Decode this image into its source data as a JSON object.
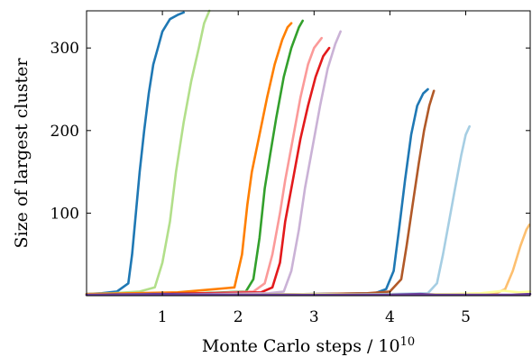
{
  "chart_data": {
    "type": "line",
    "xlabel": "Monte Carlo steps / 10",
    "xlabel_exponent": "10",
    "ylabel": "Size of largest cluster",
    "xlim": [
      0,
      5.85
    ],
    "ylim": [
      0,
      345
    ],
    "xticks": [
      1,
      2,
      3,
      4,
      5
    ],
    "yticks": [
      100,
      200,
      300
    ],
    "grid": false,
    "legend": "none",
    "series": [
      {
        "color": "#1f78b4",
        "points": [
          [
            0.0,
            2
          ],
          [
            0.2,
            3
          ],
          [
            0.4,
            5
          ],
          [
            0.55,
            15
          ],
          [
            0.6,
            50
          ],
          [
            0.65,
            100
          ],
          [
            0.7,
            150
          ],
          [
            0.76,
            200
          ],
          [
            0.82,
            245
          ],
          [
            0.88,
            280
          ],
          [
            0.94,
            300
          ],
          [
            1.0,
            320
          ],
          [
            1.1,
            335
          ],
          [
            1.2,
            340
          ],
          [
            1.28,
            343
          ]
        ]
      },
      {
        "color": "#b2df8a",
        "points": [
          [
            0.0,
            2
          ],
          [
            0.35,
            3
          ],
          [
            0.7,
            5
          ],
          [
            0.9,
            10
          ],
          [
            1.0,
            40
          ],
          [
            1.1,
            90
          ],
          [
            1.18,
            150
          ],
          [
            1.28,
            210
          ],
          [
            1.38,
            260
          ],
          [
            1.48,
            300
          ],
          [
            1.55,
            330
          ],
          [
            1.62,
            345
          ]
        ]
      },
      {
        "color": "#ff7f00",
        "points": [
          [
            0.0,
            2
          ],
          [
            0.6,
            3
          ],
          [
            1.2,
            4
          ],
          [
            1.7,
            8
          ],
          [
            1.95,
            10
          ],
          [
            2.05,
            50
          ],
          [
            2.12,
            110
          ],
          [
            2.18,
            150
          ],
          [
            2.28,
            195
          ],
          [
            2.38,
            240
          ],
          [
            2.48,
            280
          ],
          [
            2.58,
            310
          ],
          [
            2.65,
            325
          ],
          [
            2.7,
            330
          ]
        ]
      },
      {
        "color": "#33a02c",
        "points": [
          [
            0.0,
            1
          ],
          [
            0.8,
            2
          ],
          [
            1.5,
            3
          ],
          [
            2.1,
            5
          ],
          [
            2.2,
            20
          ],
          [
            2.28,
            70
          ],
          [
            2.35,
            130
          ],
          [
            2.42,
            170
          ],
          [
            2.5,
            215
          ],
          [
            2.6,
            265
          ],
          [
            2.7,
            300
          ],
          [
            2.8,
            325
          ],
          [
            2.85,
            333
          ]
        ]
      },
      {
        "color": "#fb9a99",
        "points": [
          [
            0.0,
            1
          ],
          [
            0.8,
            2
          ],
          [
            1.6,
            3
          ],
          [
            2.2,
            5
          ],
          [
            2.35,
            15
          ],
          [
            2.45,
            50
          ],
          [
            2.55,
            100
          ],
          [
            2.62,
            140
          ],
          [
            2.72,
            190
          ],
          [
            2.82,
            240
          ],
          [
            2.92,
            280
          ],
          [
            3.0,
            300
          ],
          [
            3.1,
            312
          ]
        ]
      },
      {
        "color": "#e31a1c",
        "points": [
          [
            0.0,
            1
          ],
          [
            0.8,
            2
          ],
          [
            1.6,
            3
          ],
          [
            2.3,
            4
          ],
          [
            2.45,
            10
          ],
          [
            2.55,
            40
          ],
          [
            2.62,
            90
          ],
          [
            2.72,
            140
          ],
          [
            2.82,
            190
          ],
          [
            2.92,
            230
          ],
          [
            3.02,
            265
          ],
          [
            3.12,
            290
          ],
          [
            3.2,
            300
          ]
        ]
      },
      {
        "color": "#cab2d6",
        "points": [
          [
            0.0,
            1
          ],
          [
            0.8,
            1
          ],
          [
            1.6,
            2
          ],
          [
            2.4,
            3
          ],
          [
            2.6,
            5
          ],
          [
            2.7,
            30
          ],
          [
            2.8,
            80
          ],
          [
            2.88,
            130
          ],
          [
            2.98,
            180
          ],
          [
            3.08,
            230
          ],
          [
            3.18,
            275
          ],
          [
            3.28,
            305
          ],
          [
            3.35,
            320
          ]
        ]
      },
      {
        "color": "#1f78b4",
        "points": [
          [
            0.0,
            1
          ],
          [
            1.0,
            1
          ],
          [
            2.0,
            1
          ],
          [
            3.0,
            2
          ],
          [
            3.8,
            3
          ],
          [
            3.95,
            8
          ],
          [
            4.05,
            30
          ],
          [
            4.12,
            80
          ],
          [
            4.2,
            140
          ],
          [
            4.28,
            195
          ],
          [
            4.36,
            230
          ],
          [
            4.44,
            245
          ],
          [
            4.5,
            250
          ]
        ]
      },
      {
        "color": "#b15928",
        "points": [
          [
            0.0,
            1
          ],
          [
            1.0,
            1
          ],
          [
            2.0,
            1
          ],
          [
            3.0,
            2
          ],
          [
            3.7,
            3
          ],
          [
            4.0,
            5
          ],
          [
            4.15,
            20
          ],
          [
            4.22,
            60
          ],
          [
            4.3,
            110
          ],
          [
            4.38,
            160
          ],
          [
            4.45,
            200
          ],
          [
            4.52,
            230
          ],
          [
            4.58,
            248
          ]
        ]
      },
      {
        "color": "#a6cee3",
        "points": [
          [
            0.0,
            1
          ],
          [
            1.0,
            1
          ],
          [
            2.0,
            1
          ],
          [
            3.0,
            1
          ],
          [
            4.0,
            2
          ],
          [
            4.5,
            3
          ],
          [
            4.62,
            15
          ],
          [
            4.7,
            50
          ],
          [
            4.78,
            90
          ],
          [
            4.86,
            130
          ],
          [
            4.94,
            170
          ],
          [
            5.0,
            195
          ],
          [
            5.05,
            205
          ]
        ]
      },
      {
        "color": "#fdbf6f",
        "points": [
          [
            0.0,
            1
          ],
          [
            2.0,
            1
          ],
          [
            3.0,
            1
          ],
          [
            4.0,
            1
          ],
          [
            5.0,
            2
          ],
          [
            5.4,
            3
          ],
          [
            5.52,
            8
          ],
          [
            5.62,
            30
          ],
          [
            5.72,
            60
          ],
          [
            5.8,
            80
          ],
          [
            5.84,
            86
          ]
        ]
      },
      {
        "color": "#ffff99",
        "points": [
          [
            0.0,
            1
          ],
          [
            1.0,
            2
          ],
          [
            2.0,
            1
          ],
          [
            3.0,
            2
          ],
          [
            4.0,
            1
          ],
          [
            4.8,
            2
          ],
          [
            5.2,
            3
          ],
          [
            5.5,
            6
          ],
          [
            5.7,
            4
          ],
          [
            5.85,
            5
          ]
        ]
      },
      {
        "color": "#6a3d9a",
        "points": [
          [
            0.0,
            1
          ],
          [
            1.0,
            2
          ],
          [
            2.0,
            1
          ],
          [
            3.0,
            1
          ],
          [
            4.0,
            1
          ],
          [
            4.4,
            2
          ],
          [
            4.6,
            1
          ],
          [
            5.0,
            1
          ],
          [
            5.6,
            1
          ],
          [
            5.85,
            2
          ]
        ]
      }
    ]
  }
}
